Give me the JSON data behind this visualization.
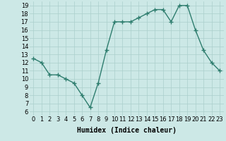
{
  "x": [
    0,
    1,
    2,
    3,
    4,
    5,
    6,
    7,
    8,
    9,
    10,
    11,
    12,
    13,
    14,
    15,
    16,
    17,
    18,
    19,
    20,
    21,
    22,
    23
  ],
  "y": [
    12.5,
    12.0,
    10.5,
    10.5,
    10.0,
    9.5,
    8.0,
    6.5,
    9.5,
    13.5,
    17.0,
    17.0,
    17.0,
    17.5,
    18.0,
    18.5,
    18.5,
    17.0,
    19.0,
    19.0,
    16.0,
    13.5,
    12.0,
    11.0
  ],
  "line_color": "#2e7d6e",
  "marker": "+",
  "marker_size": 4,
  "bg_color": "#cce8e6",
  "grid_color": "#aacfcc",
  "xlabel": "Humidex (Indice chaleur)",
  "xlim": [
    -0.5,
    23.5
  ],
  "ylim": [
    5.5,
    19.5
  ],
  "yticks": [
    6,
    7,
    8,
    9,
    10,
    11,
    12,
    13,
    14,
    15,
    16,
    17,
    18,
    19
  ],
  "xticks": [
    0,
    1,
    2,
    3,
    4,
    5,
    6,
    7,
    8,
    9,
    10,
    11,
    12,
    13,
    14,
    15,
    16,
    17,
    18,
    19,
    20,
    21,
    22,
    23
  ],
  "xlabel_fontsize": 7,
  "tick_fontsize": 6,
  "linewidth": 1.0
}
